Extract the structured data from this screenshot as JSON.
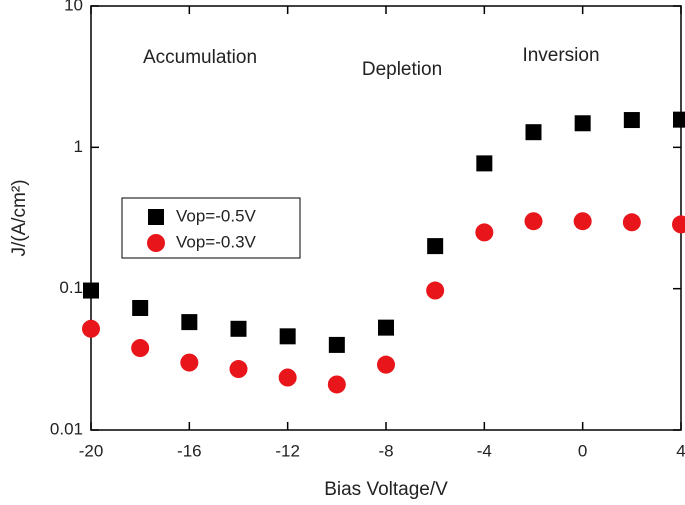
{
  "chart_data": {
    "type": "scatter",
    "x_label": "Bias Voltage/V",
    "y_label": "J/(A/cm²)",
    "annotations": [
      "Accumulation",
      "Depletion",
      "Inversion"
    ],
    "x": [
      -20,
      -18,
      -16,
      -14,
      -12,
      -10,
      -8,
      -6,
      -4,
      -2,
      0,
      2,
      4
    ],
    "series": [
      {
        "name": "Vop=-0.5V",
        "color": "#000000",
        "marker": "square",
        "values": [
          0.097,
          0.073,
          0.058,
          0.052,
          0.046,
          0.04,
          0.053,
          0.2,
          0.77,
          1.28,
          1.48,
          1.56,
          1.57
        ]
      },
      {
        "name": "Vop=-0.3V",
        "color": "#e8161b",
        "marker": "circle",
        "values": [
          0.052,
          0.038,
          0.03,
          0.027,
          0.0235,
          0.021,
          0.029,
          0.097,
          0.25,
          0.3,
          0.3,
          0.295,
          0.285
        ]
      }
    ],
    "xlim": [
      -20,
      4
    ],
    "xticks": [
      -20,
      -16,
      -12,
      -8,
      -4,
      0,
      4
    ],
    "ylim": [
      0.01,
      10
    ],
    "yticks": [
      0.01,
      0.1,
      1,
      10
    ],
    "y_log": true
  }
}
